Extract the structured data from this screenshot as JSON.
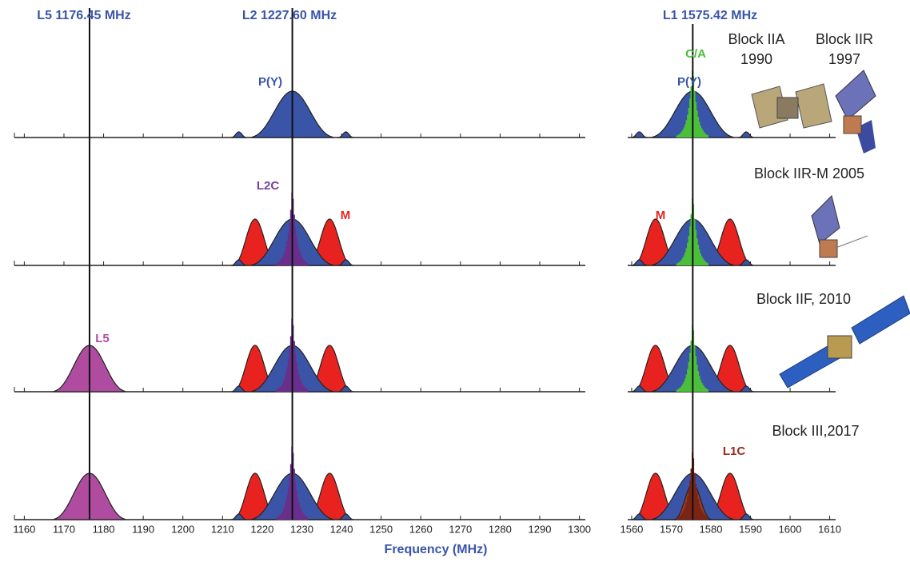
{
  "carriers": [
    {
      "label": "L5 1176.45 MHz",
      "freq": 1176.45,
      "axis": 0
    },
    {
      "label": "L2 1227.60 MHz",
      "freq": 1227.6,
      "axis": 0
    },
    {
      "label": "L1 1575.42 MHz",
      "freq": 1575.42,
      "axis": 1
    }
  ],
  "axes": [
    {
      "xlim": [
        1157.5,
        1301.5
      ],
      "xticks": [
        1160,
        1170,
        1180,
        1190,
        1200,
        1210,
        1220,
        1230,
        1240,
        1250,
        1260,
        1270,
        1280,
        1290,
        1300
      ]
    },
    {
      "xlim": [
        1559,
        1611.5
      ],
      "xticks": [
        1560,
        1570,
        1580,
        1590,
        1600,
        1610
      ]
    }
  ],
  "x_label": "Frequency (MHz)",
  "signal_labels": [
    "P(Y)",
    "C/A",
    "P(Y)",
    "L2C",
    "M",
    "M",
    "L5",
    "L1C"
  ],
  "block_labels": [
    "Block IIA",
    "1990",
    "Block IIR",
    "1997",
    "Block IIR-M 2005",
    "Block IIF, 2010",
    "Block III,2017"
  ]
}
